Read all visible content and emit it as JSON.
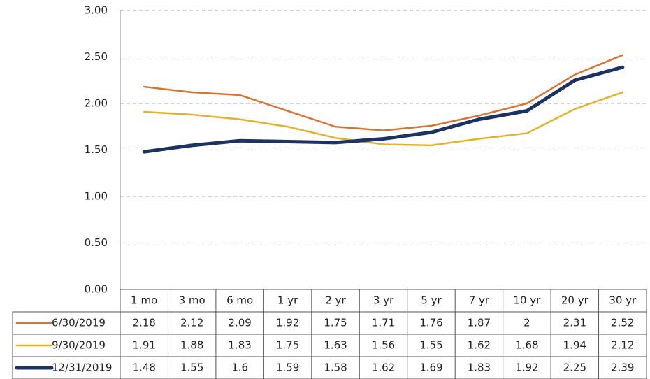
{
  "chart_data": {
    "type": "line",
    "categories": [
      "1 mo",
      "3 mo",
      "6 mo",
      "1 yr",
      "2 yr",
      "3 yr",
      "5 yr",
      "7 yr",
      "10 yr",
      "20 yr",
      "30 yr"
    ],
    "series": [
      {
        "name": "6/30/2019",
        "color": "#d9732f",
        "values": [
          2.18,
          2.12,
          2.09,
          1.92,
          1.75,
          1.71,
          1.76,
          1.87,
          2,
          2.31,
          2.52
        ]
      },
      {
        "name": "9/30/2019",
        "color": "#e3b12c",
        "values": [
          1.91,
          1.88,
          1.83,
          1.75,
          1.63,
          1.56,
          1.55,
          1.62,
          1.68,
          1.94,
          2.12
        ]
      },
      {
        "name": "12/31/2019",
        "color": "#1b3263",
        "values": [
          1.48,
          1.55,
          1.6,
          1.59,
          1.58,
          1.62,
          1.69,
          1.83,
          1.92,
          2.25,
          2.39
        ]
      }
    ],
    "ylim": [
      0,
      3
    ],
    "yticks": [
      {
        "value": 0,
        "label": "0.00"
      },
      {
        "value": 0.5,
        "label": "0.50"
      },
      {
        "value": 1,
        "label": "1.00"
      },
      {
        "value": 1.5,
        "label": "1.50"
      },
      {
        "value": 2,
        "label": "2.00"
      },
      {
        "value": 2.5,
        "label": "2.50"
      },
      {
        "value": 3,
        "label": "3.00"
      }
    ],
    "grid": true
  }
}
